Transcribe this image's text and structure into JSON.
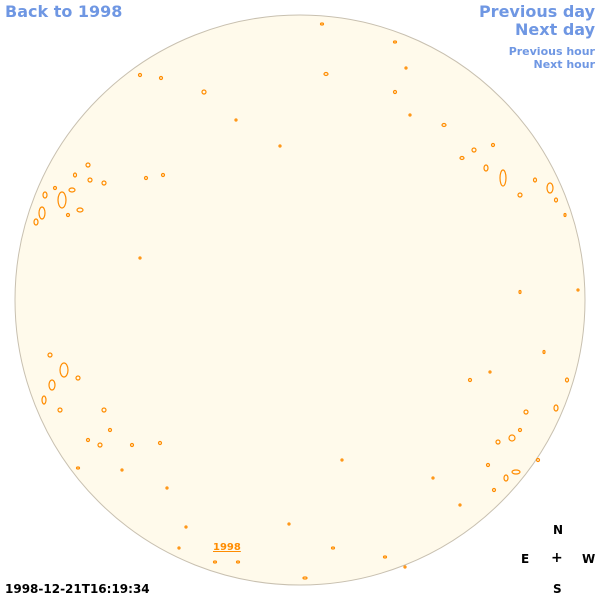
{
  "nav": {
    "back": "Back to 1998",
    "previous_day": "Previous day",
    "next_day": "Next day",
    "previous_hour": "Previous hour",
    "next_hour": "Next hour"
  },
  "disk": {
    "year_link": "1998",
    "fill_color": "#fffaeb",
    "edge_color": "#c8c0b0",
    "contour_color": "#ff8c00"
  },
  "timestamp": "1998-12-21T16:19:34",
  "compass": {
    "north": "N",
    "east": "E",
    "center": "+",
    "west": "W",
    "south": "S"
  }
}
